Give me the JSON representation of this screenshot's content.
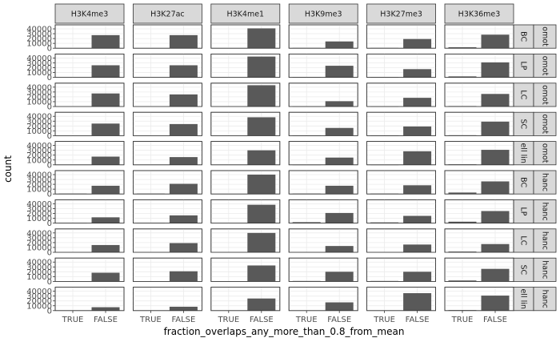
{
  "chart_data": {
    "type": "bar",
    "title": "",
    "xlabel": "fraction_overlaps_any_more_than_0.8_from_mean",
    "ylabel": "count",
    "categories": [
      "TRUE",
      "FALSE"
    ],
    "ylim": [
      0,
      45000
    ],
    "yticks": [
      0,
      10000,
      20000,
      30000,
      40000
    ],
    "grid": true,
    "col_facets": [
      "H3K4me3",
      "H3K27ac",
      "H3K4me1",
      "H3K9me3",
      "H3K27me3",
      "H3K36me3"
    ],
    "row_facets": [
      {
        "group": "BC",
        "strip2": "omot"
      },
      {
        "group": "LP",
        "strip2": "omot"
      },
      {
        "group": "LC",
        "strip2": "omot"
      },
      {
        "group": "SC",
        "strip2": "omot"
      },
      {
        "group": "ell lin",
        "strip2": "omot"
      },
      {
        "group": "BC",
        "strip2": "hanc"
      },
      {
        "group": "LP",
        "strip2": "hanc"
      },
      {
        "group": "LC",
        "strip2": "hanc"
      },
      {
        "group": "SC",
        "strip2": "hanc"
      },
      {
        "group": "ell lin",
        "strip2": "hanc"
      }
    ],
    "values": [
      [
        [
          0,
          27000
        ],
        [
          0,
          27000
        ],
        [
          0,
          41000
        ],
        [
          600,
          14000
        ],
        [
          600,
          19000
        ],
        [
          2000,
          28000
        ]
      ],
      [
        [
          0,
          25000
        ],
        [
          0,
          25000
        ],
        [
          0,
          43000
        ],
        [
          600,
          24000
        ],
        [
          600,
          17000
        ],
        [
          2000,
          31000
        ]
      ],
      [
        [
          0,
          27000
        ],
        [
          0,
          25000
        ],
        [
          0,
          44000
        ],
        [
          300,
          11000
        ],
        [
          300,
          18000
        ],
        [
          1000,
          26000
        ]
      ],
      [
        [
          0,
          25000
        ],
        [
          0,
          24000
        ],
        [
          0,
          38000
        ],
        [
          400,
          16000
        ],
        [
          400,
          19000
        ],
        [
          1000,
          29000
        ]
      ],
      [
        [
          0,
          17000
        ],
        [
          0,
          16000
        ],
        [
          0,
          30000
        ],
        [
          400,
          15000
        ],
        [
          400,
          28000
        ],
        [
          1000,
          31000
        ]
      ],
      [
        [
          800,
          17000
        ],
        [
          800,
          21000
        ],
        [
          0,
          40000
        ],
        [
          800,
          17000
        ],
        [
          800,
          18000
        ],
        [
          3000,
          26000
        ]
      ],
      [
        [
          500,
          12000
        ],
        [
          500,
          16000
        ],
        [
          0,
          38000
        ],
        [
          2000,
          21000
        ],
        [
          1500,
          15000
        ],
        [
          3000,
          25000
        ]
      ],
      [
        [
          0,
          15000
        ],
        [
          0,
          19000
        ],
        [
          0,
          40000
        ],
        [
          0,
          13000
        ],
        [
          0,
          16000
        ],
        [
          1500,
          17000
        ]
      ],
      [
        [
          0,
          18000
        ],
        [
          0,
          21000
        ],
        [
          0,
          33000
        ],
        [
          1000,
          20000
        ],
        [
          1000,
          20000
        ],
        [
          2000,
          26000
        ]
      ],
      [
        [
          0,
          7000
        ],
        [
          0,
          8000
        ],
        [
          0,
          25000
        ],
        [
          0,
          17000
        ],
        [
          0,
          36000
        ],
        [
          1000,
          31000
        ]
      ]
    ]
  }
}
